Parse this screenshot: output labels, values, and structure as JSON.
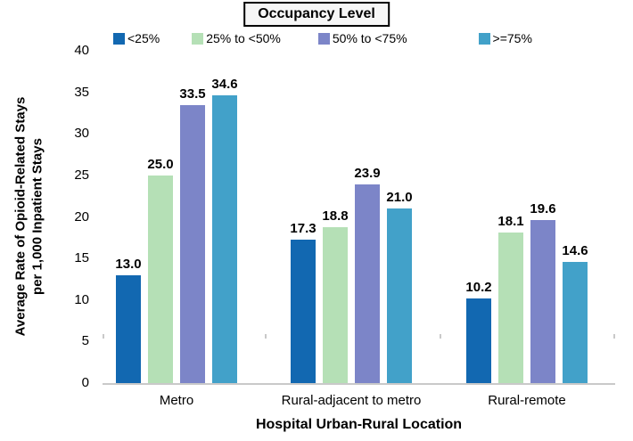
{
  "chart_data": {
    "type": "bar",
    "legend_title": "Occupancy Level",
    "xlabel": "Hospital Urban-Rural Location",
    "ylabel": "Average Rate of Opioid-Related Stays\nper 1,000 Inpatient Stays",
    "categories": [
      "Metro",
      "Rural-adjacent to metro",
      "Rural-remote"
    ],
    "series": [
      {
        "name": "<25%",
        "color": "#1268b1",
        "values": [
          13.0,
          17.3,
          10.2
        ]
      },
      {
        "name": "25% to <50%",
        "color": "#b5e0b6",
        "values": [
          25.0,
          18.8,
          18.1
        ]
      },
      {
        "name": "50% to <75%",
        "color": "#7c85c8",
        "values": [
          33.5,
          23.9,
          19.6
        ]
      },
      {
        "name": ">=75%",
        "color": "#42a1c9",
        "values": [
          34.6,
          21.0,
          14.6
        ]
      }
    ],
    "ylim": [
      0,
      40
    ],
    "yticks": [
      0,
      5,
      10,
      15,
      20,
      25,
      30,
      35,
      40
    ],
    "grid": false,
    "legend_position": "top",
    "value_labels_shown": true,
    "value_label_decimals": 1
  },
  "colors": {
    "axis_line": "#c9c9c9",
    "background": "#ffffff",
    "legend_box_border": "#000000",
    "legend_box_bg": "#f6f6f6",
    "text": "#000000"
  }
}
